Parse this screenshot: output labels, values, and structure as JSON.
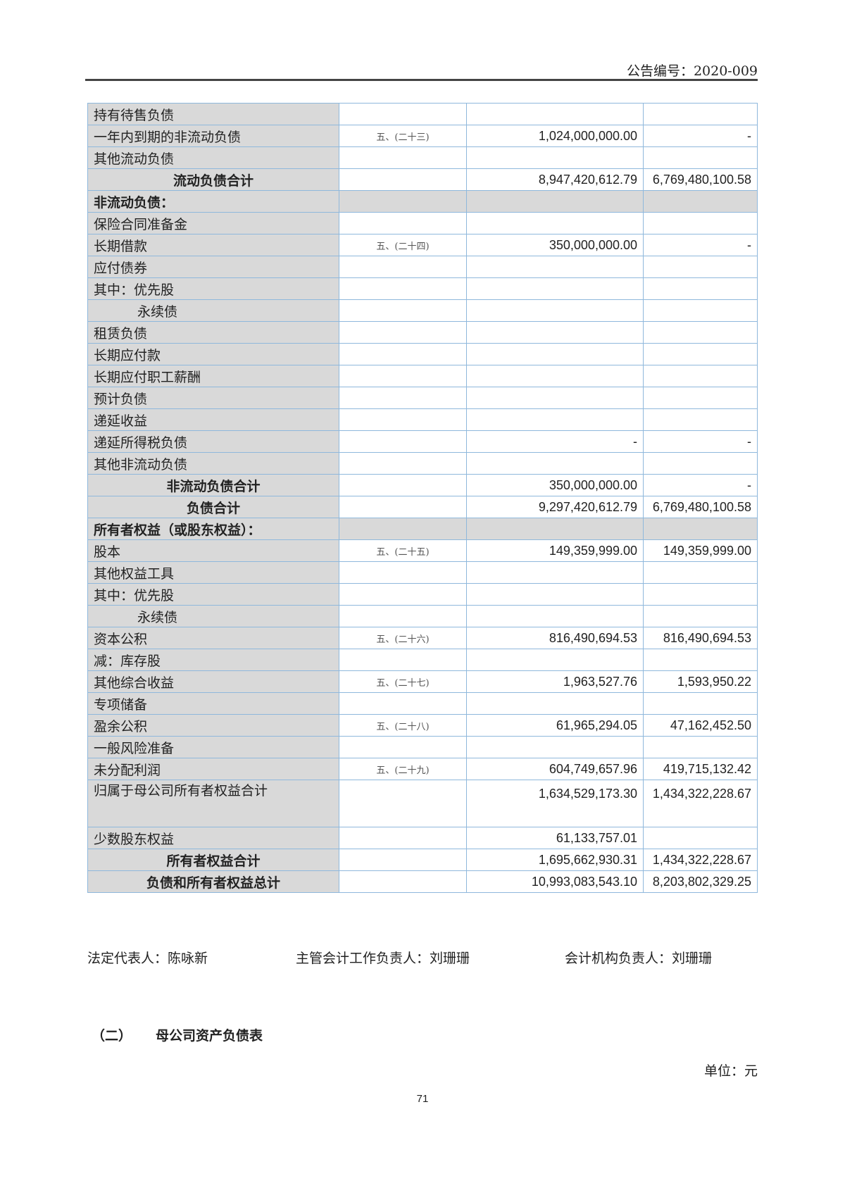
{
  "header": {
    "doc_number": "公告编号：2020-009"
  },
  "rows": [
    {
      "label": "持有待售负债",
      "note": "",
      "current": "",
      "prior": "",
      "type": "normal"
    },
    {
      "label": "一年内到期的非流动负债",
      "note": "五、(二十三)",
      "current": "1,024,000,000.00",
      "prior": "-",
      "type": "normal"
    },
    {
      "label": "其他流动负债",
      "note": "",
      "current": "",
      "prior": "",
      "type": "normal"
    },
    {
      "label": "流动负债合计",
      "note": "",
      "current": "8,947,420,612.79",
      "prior": "6,769,480,100.58",
      "type": "total"
    },
    {
      "label": "非流动负债：",
      "note": "",
      "current": "",
      "prior": "",
      "type": "section"
    },
    {
      "label": "保险合同准备金",
      "note": "",
      "current": "",
      "prior": "",
      "type": "normal"
    },
    {
      "label": "长期借款",
      "note": "五、(二十四)",
      "current": "350,000,000.00",
      "prior": "-",
      "type": "normal"
    },
    {
      "label": "应付债券",
      "note": "",
      "current": "",
      "prior": "",
      "type": "normal"
    },
    {
      "label": "其中：优先股",
      "note": "",
      "current": "",
      "prior": "",
      "type": "normal"
    },
    {
      "label": "永续债",
      "note": "",
      "current": "",
      "prior": "",
      "type": "indent"
    },
    {
      "label": "租赁负债",
      "note": "",
      "current": "",
      "prior": "",
      "type": "normal"
    },
    {
      "label": "长期应付款",
      "note": "",
      "current": "",
      "prior": "",
      "type": "normal"
    },
    {
      "label": "长期应付职工薪酬",
      "note": "",
      "current": "",
      "prior": "",
      "type": "normal"
    },
    {
      "label": "预计负债",
      "note": "",
      "current": "",
      "prior": "",
      "type": "normal"
    },
    {
      "label": "递延收益",
      "note": "",
      "current": "",
      "prior": "",
      "type": "normal"
    },
    {
      "label": "递延所得税负债",
      "note": "",
      "current": "-",
      "prior": "-",
      "type": "normal"
    },
    {
      "label": "其他非流动负债",
      "note": "",
      "current": "",
      "prior": "",
      "type": "normal"
    },
    {
      "label": "非流动负债合计",
      "note": "",
      "current": "350,000,000.00",
      "prior": "-",
      "type": "total"
    },
    {
      "label": "负债合计",
      "note": "",
      "current": "9,297,420,612.79",
      "prior": "6,769,480,100.58",
      "type": "total"
    },
    {
      "label": "所有者权益（或股东权益）：",
      "note": "",
      "current": "",
      "prior": "",
      "type": "section"
    },
    {
      "label": "股本",
      "note": "五、(二十五)",
      "current": "149,359,999.00",
      "prior": "149,359,999.00",
      "type": "normal"
    },
    {
      "label": "其他权益工具",
      "note": "",
      "current": "",
      "prior": "",
      "type": "normal"
    },
    {
      "label": "其中：优先股",
      "note": "",
      "current": "",
      "prior": "",
      "type": "normal"
    },
    {
      "label": "永续债",
      "note": "",
      "current": "",
      "prior": "",
      "type": "indent"
    },
    {
      "label": "资本公积",
      "note": "五、(二十六)",
      "current": "816,490,694.53",
      "prior": "816,490,694.53",
      "type": "normal"
    },
    {
      "label": "减：库存股",
      "note": "",
      "current": "",
      "prior": "",
      "type": "normal"
    },
    {
      "label": "其他综合收益",
      "note": "五、(二十七)",
      "current": "1,963,527.76",
      "prior": "1,593,950.22",
      "type": "normal"
    },
    {
      "label": "专项储备",
      "note": "",
      "current": "",
      "prior": "",
      "type": "normal"
    },
    {
      "label": "盈余公积",
      "note": "五、(二十八)",
      "current": "61,965,294.05",
      "prior": "47,162,452.50",
      "type": "normal"
    },
    {
      "label": "一般风险准备",
      "note": "",
      "current": "",
      "prior": "",
      "type": "normal"
    },
    {
      "label": "未分配利润",
      "note": "五、(二十九)",
      "current": "604,749,657.96",
      "prior": "419,715,132.42",
      "type": "normal"
    },
    {
      "label": "归属于母公司所有者权益合计",
      "note": "",
      "current": "1,634,529,173.30",
      "prior": "1,434,322,228.67",
      "type": "tall"
    },
    {
      "label": "少数股东权益",
      "note": "",
      "current": "61,133,757.01",
      "prior": "",
      "type": "normal"
    },
    {
      "label": "所有者权益合计",
      "note": "",
      "current": "1,695,662,930.31",
      "prior": "1,434,322,228.67",
      "type": "total"
    },
    {
      "label": "负债和所有者权益总计",
      "note": "",
      "current": "10,993,083,543.10",
      "prior": "8,203,802,329.25",
      "type": "total"
    }
  ],
  "signatures": {
    "legal_rep": "法定代表人：陈咏新",
    "accounting_head": "主管会计工作负责人：刘珊珊",
    "accounting_dept_head": "会计机构负责人：刘珊珊"
  },
  "section": {
    "number": "（二）",
    "title": "母公司资产负债表"
  },
  "unit": "单位：元",
  "page_number": "71"
}
